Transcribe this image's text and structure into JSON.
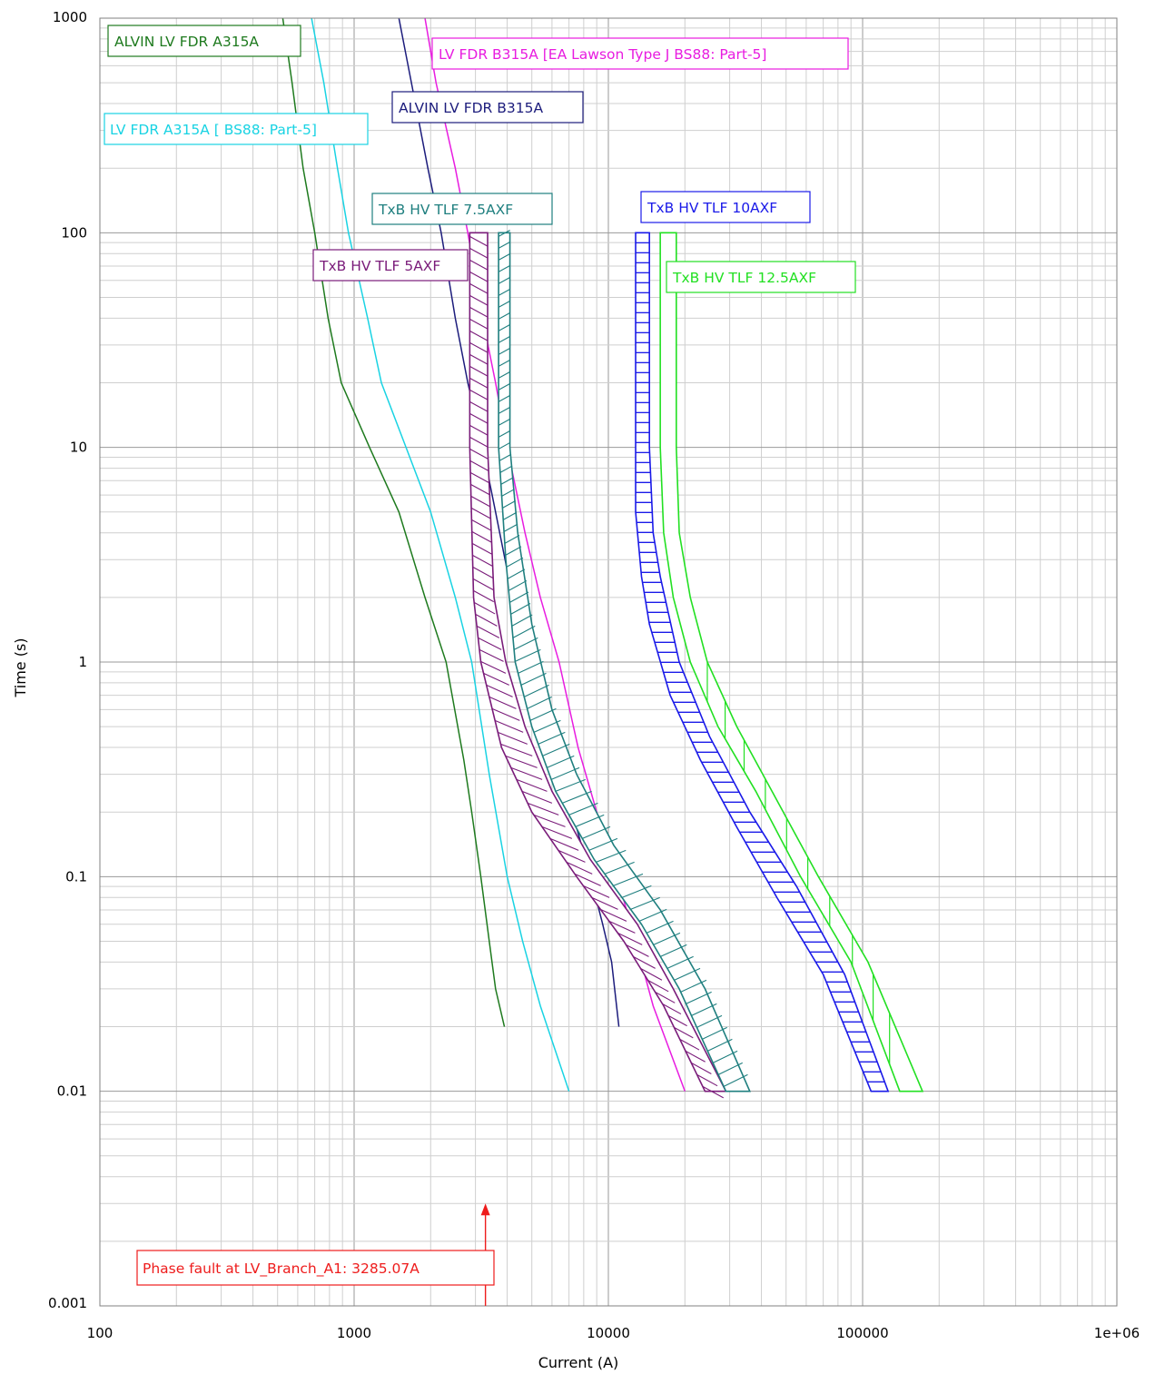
{
  "chart_data": {
    "type": "line",
    "title": "",
    "xlabel": "Current (A)",
    "ylabel": "Time (s)",
    "x_scale": "log",
    "y_scale": "log",
    "xlim": [
      100,
      1000000
    ],
    "ylim": [
      0.001,
      1000
    ],
    "grid": true,
    "x_tick_labels": [
      {
        "value": 100,
        "label": "100"
      },
      {
        "value": 1000,
        "label": "1000"
      },
      {
        "value": 10000,
        "label": "10000"
      },
      {
        "value": 100000,
        "label": "100000"
      },
      {
        "value": 1000000,
        "label": "1e+06"
      }
    ],
    "y_tick_labels": [
      {
        "value": 0.001,
        "label": "0.001"
      },
      {
        "value": 0.01,
        "label": "0.01"
      },
      {
        "value": 0.1,
        "label": "0.1"
      },
      {
        "value": 1,
        "label": "1"
      },
      {
        "value": 10,
        "label": "10"
      },
      {
        "value": 100,
        "label": "100"
      },
      {
        "value": 1000,
        "label": "1000"
      }
    ],
    "series": [
      {
        "name": "ALVIN LV FDR A315A",
        "color": "#1e7a1e",
        "kind": "curve",
        "points": [
          [
            524,
            1000
          ],
          [
            570,
            500
          ],
          [
            630,
            200
          ],
          [
            700,
            100
          ],
          [
            790,
            40
          ],
          [
            890,
            20
          ],
          [
            1150,
            10
          ],
          [
            1500,
            5
          ],
          [
            1900,
            2
          ],
          [
            2300,
            1
          ],
          [
            2700,
            0.35
          ],
          [
            2900,
            0.2
          ],
          [
            3150,
            0.1
          ],
          [
            3400,
            0.05
          ],
          [
            3600,
            0.03
          ],
          [
            3900,
            0.02
          ]
        ]
      },
      {
        "name": "LV FDR A315A [ BS88: Part-5]",
        "color": "#19d3e3",
        "kind": "curve",
        "points": [
          [
            680,
            1000
          ],
          [
            760,
            500
          ],
          [
            860,
            200
          ],
          [
            950,
            100
          ],
          [
            1130,
            40
          ],
          [
            1280,
            20
          ],
          [
            1600,
            10
          ],
          [
            2000,
            5
          ],
          [
            2500,
            2
          ],
          [
            2900,
            1
          ],
          [
            3400,
            0.3
          ],
          [
            4000,
            0.1
          ],
          [
            4600,
            0.05
          ],
          [
            5400,
            0.025
          ],
          [
            7000,
            0.01
          ]
        ]
      },
      {
        "name": "ALVIN LV FDR B315A",
        "color": "#1c1c7c",
        "kind": "curve",
        "points": [
          [
            1500,
            1000
          ],
          [
            1680,
            500
          ],
          [
            1950,
            200
          ],
          [
            2200,
            100
          ],
          [
            2500,
            40
          ],
          [
            2800,
            20
          ],
          [
            3200,
            10
          ],
          [
            3600,
            5
          ],
          [
            4200,
            2
          ],
          [
            5000,
            1
          ],
          [
            6200,
            0.4
          ],
          [
            7200,
            0.2
          ],
          [
            8500,
            0.1
          ],
          [
            9500,
            0.06
          ],
          [
            10300,
            0.04
          ],
          [
            11000,
            0.02
          ]
        ]
      },
      {
        "name": "LV FDR B315A [EA Lawson Type J BS88: Part-5]",
        "color": "#e81ce0",
        "kind": "curve",
        "points": [
          [
            1900,
            1000
          ],
          [
            2100,
            500
          ],
          [
            2500,
            200
          ],
          [
            2800,
            100
          ],
          [
            3200,
            40
          ],
          [
            3600,
            20
          ],
          [
            4000,
            10
          ],
          [
            4700,
            4
          ],
          [
            5400,
            2
          ],
          [
            6400,
            1
          ],
          [
            7600,
            0.4
          ],
          [
            9000,
            0.2
          ],
          [
            10800,
            0.1
          ],
          [
            12800,
            0.05
          ],
          [
            15000,
            0.025
          ],
          [
            20000,
            0.01
          ]
        ]
      },
      {
        "name": "TxB HV TLF 5AXF",
        "color": "#7a1c7a",
        "kind": "band",
        "hatch": "diag-back",
        "left": [
          [
            2850,
            100
          ],
          [
            2850,
            10
          ],
          [
            2950,
            2
          ],
          [
            3150,
            1
          ],
          [
            3800,
            0.4
          ],
          [
            5000,
            0.2
          ],
          [
            7500,
            0.1
          ],
          [
            11500,
            0.05
          ],
          [
            16500,
            0.025
          ],
          [
            24000,
            0.01
          ]
        ],
        "right": [
          [
            3350,
            100
          ],
          [
            3350,
            10
          ],
          [
            3550,
            2
          ],
          [
            3950,
            1
          ],
          [
            4700,
            0.5
          ],
          [
            6000,
            0.25
          ],
          [
            8500,
            0.12
          ],
          [
            13000,
            0.06
          ],
          [
            18000,
            0.03
          ],
          [
            29000,
            0.01
          ]
        ]
      },
      {
        "name": "TxB HV TLF 7.5AXF",
        "color": "#1f7f7f",
        "kind": "band",
        "hatch": "diag-fwd",
        "left": [
          [
            3700,
            100
          ],
          [
            3700,
            10
          ],
          [
            3950,
            3
          ],
          [
            4300,
            1
          ],
          [
            5000,
            0.5
          ],
          [
            6200,
            0.25
          ],
          [
            8800,
            0.12
          ],
          [
            13500,
            0.06
          ],
          [
            19000,
            0.03
          ],
          [
            29000,
            0.01
          ]
        ],
        "right": [
          [
            4100,
            100
          ],
          [
            4100,
            10
          ],
          [
            4400,
            4
          ],
          [
            5000,
            1.5
          ],
          [
            6000,
            0.6
          ],
          [
            7500,
            0.3
          ],
          [
            10500,
            0.14
          ],
          [
            16000,
            0.07
          ],
          [
            24000,
            0.03
          ],
          [
            36000,
            0.01
          ]
        ]
      },
      {
        "name": "TxB HV TLF 10AXF",
        "color": "#1a1ae8",
        "kind": "band",
        "hatch": "horizontal",
        "left": [
          [
            12800,
            100
          ],
          [
            12800,
            5
          ],
          [
            13500,
            2.5
          ],
          [
            14500,
            1.5
          ],
          [
            17500,
            0.7
          ],
          [
            23000,
            0.35
          ],
          [
            32000,
            0.17
          ],
          [
            46000,
            0.08
          ],
          [
            70000,
            0.035
          ],
          [
            108000,
            0.01
          ]
        ],
        "right": [
          [
            14500,
            100
          ],
          [
            14500,
            10
          ],
          [
            15000,
            4
          ],
          [
            16000,
            2.5
          ],
          [
            19000,
            1
          ],
          [
            25000,
            0.45
          ],
          [
            36000,
            0.2
          ],
          [
            55000,
            0.09
          ],
          [
            85000,
            0.035
          ],
          [
            126000,
            0.01
          ]
        ]
      },
      {
        "name": "TxB HV TLF 12.5AXF",
        "color": "#22e022",
        "kind": "band",
        "hatch": "vertical",
        "left": [
          [
            16000,
            100
          ],
          [
            16000,
            10
          ],
          [
            16500,
            4
          ],
          [
            18000,
            2
          ],
          [
            21000,
            1
          ],
          [
            27000,
            0.5
          ],
          [
            38000,
            0.25
          ],
          [
            57000,
            0.1
          ],
          [
            90000,
            0.04
          ],
          [
            140000,
            0.01
          ]
        ],
        "right": [
          [
            18500,
            100
          ],
          [
            18500,
            10
          ],
          [
            19000,
            4
          ],
          [
            21000,
            2
          ],
          [
            24500,
            1
          ],
          [
            32000,
            0.5
          ],
          [
            44000,
            0.25
          ],
          [
            67000,
            0.1
          ],
          [
            105000,
            0.04
          ],
          [
            172000,
            0.01
          ]
        ]
      }
    ],
    "annotations": [
      {
        "text": "Phase fault at LV_Branch_A1: 3285.07A",
        "color": "#ee1c1c",
        "x": 3285.07,
        "arrow_to_time": 0.003
      }
    ]
  },
  "labels": {
    "alvin_a": "ALVIN LV FDR A315A",
    "lv_a": "LV FDR A315A [ BS88: Part-5]",
    "alvin_b": "ALVIN LV FDR B315A",
    "lv_b": "LV FDR B315A [EA Lawson Type J BS88: Part-5]",
    "tlf5": "TxB HV TLF 5AXF",
    "tlf75": "TxB HV TLF 7.5AXF",
    "tlf10": "TxB HV TLF 10AXF",
    "tlf125": "TxB HV TLF 12.5AXF",
    "fault": "Phase fault at LV_Branch_A1: 3285.07A"
  }
}
